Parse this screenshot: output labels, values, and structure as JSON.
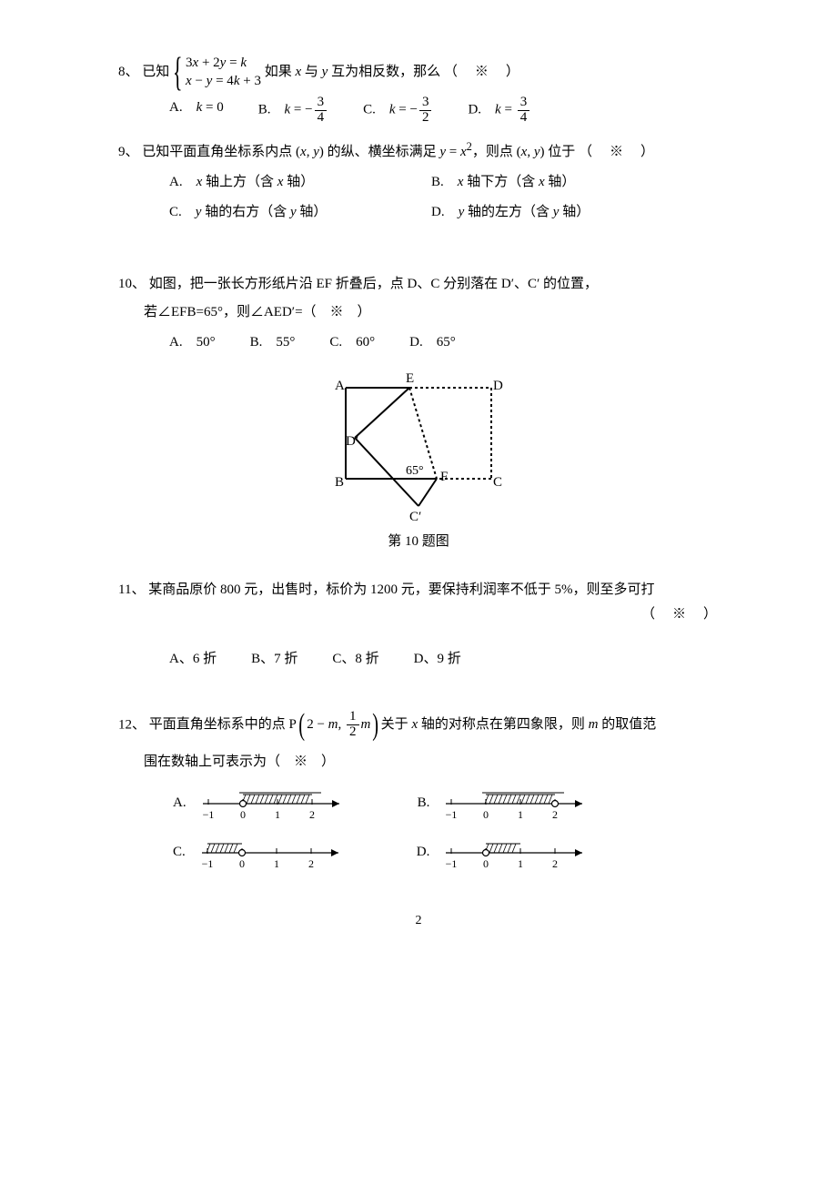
{
  "placeholder": "（　※　）",
  "q8": {
    "num": "8、",
    "prefix": "已知",
    "eq1": "3<span class='italic'>x</span> + 2<span class='italic'>y</span> = <span class='italic'>k</span>",
    "eq2": "<span class='italic'>x</span> − <span class='italic'>y</span> = 4<span class='italic'>k</span> + 3",
    "tail": " 如果 <span class='italic'>x</span> 与 <span class='italic'>y</span> 互为相反数，那么",
    "opts": {
      "A": "A.　<span class='italic'>k</span> = 0",
      "B": "B.　<span class='italic'>k</span> = −<span class='frac'><span class='num'>3</span><span class='den'>4</span></span>",
      "C": "C.　<span class='italic'>k</span> = −<span class='frac'><span class='num'>3</span><span class='den'>2</span></span>",
      "D": "D.　<span class='italic'>k</span> = <span class='frac'><span class='num'>3</span><span class='den'>4</span></span>"
    }
  },
  "q9": {
    "num": "9、",
    "stem": "已知平面直角坐标系内点 (<span class='italic'>x</span>, <span class='italic'>y</span>) 的纵、横坐标满足 <span class='italic'>y</span> = <span class='italic'>x</span><sup>2</sup>，则点 (<span class='italic'>x</span>, <span class='italic'>y</span>) 位于",
    "opts": {
      "A": "A.　<span class='italic'>x</span> 轴上方（含 <span class='italic'>x</span> 轴）",
      "B": "B.　<span class='italic'>x</span> 轴下方（含 <span class='italic'>x</span> 轴）",
      "C": "C.　<span class='italic'>y</span> 轴的右方（含 <span class='italic'>y</span> 轴）",
      "D": "D.　<span class='italic'>y</span> 轴的左方（含 <span class='italic'>y</span> 轴）"
    }
  },
  "q10": {
    "num": "10、",
    "stem1": "如图，把一张长方形纸片沿 EF 折叠后，点 D、C 分别落在 D′、C′ 的位置，",
    "stem2": "若∠EFB=65°，则∠AED′=（　※　）",
    "opts": {
      "A": "A.　50°",
      "B": "B.　55°",
      "C": "C.　60°",
      "D": "D.　65°"
    },
    "caption": "第 10 题图",
    "figure": {
      "labels": {
        "A": "A",
        "B": "B",
        "C": "C",
        "D": "D",
        "E": "E",
        "F": "F",
        "Cp": "C′",
        "Dp": "D′"
      },
      "angle_label": "65°",
      "solid_stroke": "#000000",
      "dotted_stroke": "#000000",
      "stroke_width": 2
    }
  },
  "q11": {
    "num": "11、",
    "stem": "某商品原价 800 元，出售时，标价为 1200 元，要保持利润率不低于 5%，则至多可打",
    "opts": {
      "A": "A、6 折",
      "B": "B、7 折",
      "C": "C、8 折",
      "D": "D、9 折"
    }
  },
  "q12": {
    "num": "12、",
    "stem": "平面直角坐标系中的点 P<span class='lparen-big'>(</span><span class='vmid'>2 − <span class='italic'>m</span>, <span class='frac'><span class='num'>1</span><span class='den'>2</span></span><span class='italic'>m</span></span><span class='rparen-big'>)</span>关于 <span class='italic'>x</span> 轴的对称点在第四象限，则 <span class='italic'>m</span> 的取值范",
    "stem2": "围在数轴上可表示为（　※　）",
    "nl": {
      "ticks": [
        -1,
        0,
        1,
        2
      ],
      "axis_color": "#000000",
      "hatch_color": "#000000",
      "A": {
        "label": "A.",
        "open_at": 0,
        "fill_from": 0,
        "fill_to": 2.0,
        "bracket_at": 2.0,
        "bracket_above": true,
        "fill_closed_right": true
      },
      "B": {
        "label": "B.",
        "open_at": 2,
        "fill_from": 0,
        "fill_to": 2.0,
        "bracket_at": 0,
        "bracket_above": true,
        "fill_closed_right": false
      },
      "C": {
        "label": "C.",
        "open_at": 0,
        "fill_from": -1,
        "fill_to": 0
      },
      "D": {
        "label": "D.",
        "open_at": 0,
        "fill_from": 0,
        "fill_to": 1,
        "closed_at": null
      }
    }
  },
  "page_number": "2"
}
